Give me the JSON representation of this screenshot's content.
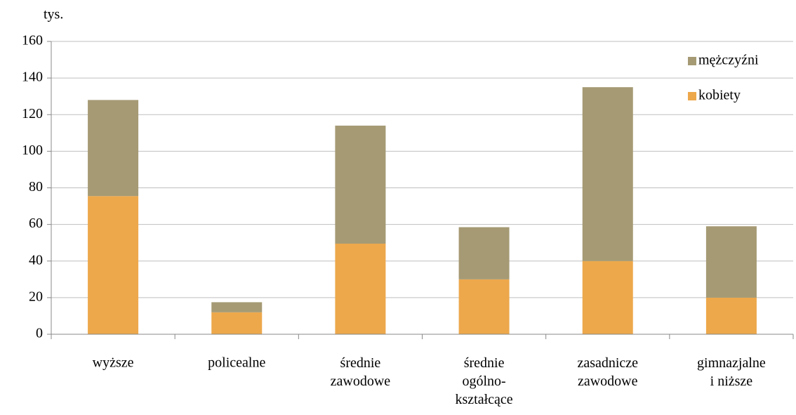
{
  "chart_data": {
    "type": "bar",
    "stacked": true,
    "ylabel": "tys.",
    "categories": [
      "wyższe",
      "policealne",
      "średnie\nzawodowe",
      "średnie\nogólno-\nkształcące",
      "zasadnicze\nzawodowe",
      "gimnazjalne\ni niższe"
    ],
    "series": [
      {
        "name": "kobiety",
        "color": "#eda84b",
        "values": [
          75.5,
          12,
          49.5,
          30,
          40,
          20
        ]
      },
      {
        "name": "mężczyźni",
        "color": "#a59a74",
        "values": [
          52.5,
          5.5,
          64.5,
          28.5,
          95,
          39
        ]
      }
    ],
    "ylim": [
      0,
      160
    ],
    "yticks": [
      0,
      20,
      40,
      60,
      80,
      100,
      120,
      140,
      160
    ],
    "grid": true,
    "legend": "upper right"
  }
}
